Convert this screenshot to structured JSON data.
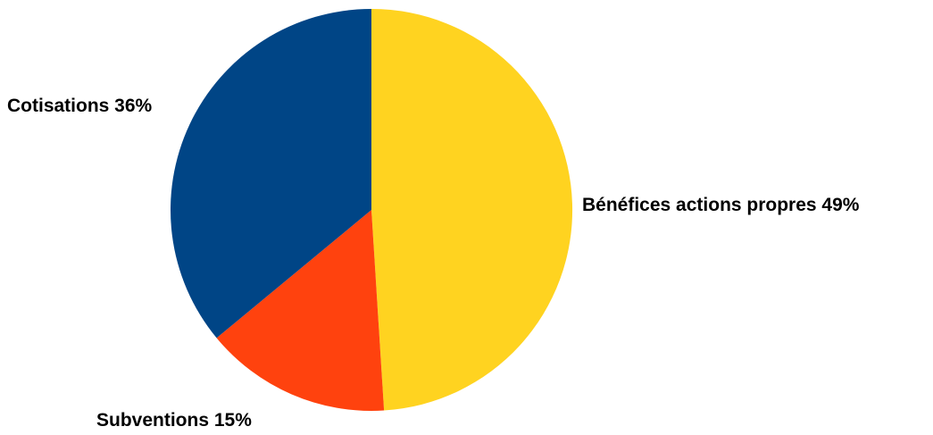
{
  "chart_data": {
    "type": "pie",
    "title": "",
    "slices": [
      {
        "label": "Bénéfices actions propres",
        "value": 49,
        "percent_label": "Bénéfices actions propres 49%",
        "color": "#FFD320"
      },
      {
        "label": "Subventions",
        "value": 15,
        "percent_label": "Subventions 15%",
        "color": "#FF420E"
      },
      {
        "label": "Cotisations",
        "value": 36,
        "percent_label": "Cotisations 36%",
        "color": "#004586"
      }
    ],
    "start_angle": "12 o'clock",
    "direction": "clockwise",
    "legend": "none"
  }
}
